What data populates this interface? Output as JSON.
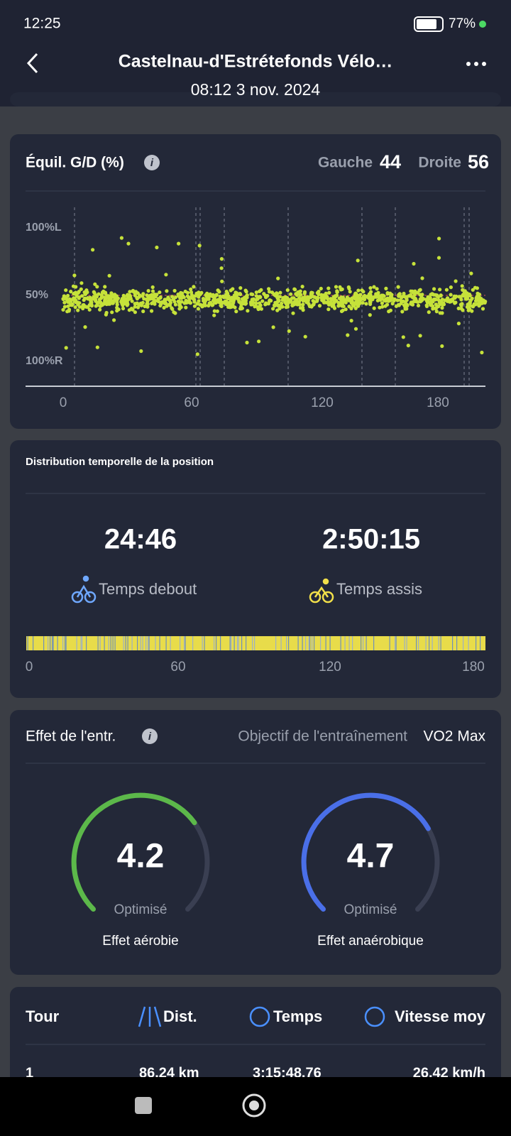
{
  "status_bar": {
    "time": "12:25",
    "battery": "77%"
  },
  "header": {
    "title": "Castelnau-d'Estrétefonds Vélo…",
    "date": "08:12 3 nov. 2024"
  },
  "balance": {
    "title": "Équil. G/D (%)",
    "left_label": "Gauche",
    "left_value": "44",
    "right_label": "Droite",
    "right_value": "56",
    "y_labels": [
      "100%L",
      "50%",
      "100%R"
    ],
    "x_labels": [
      "0",
      "60",
      "120",
      "180"
    ]
  },
  "position": {
    "title": "Distribution temporelle de la position",
    "standing_time": "24:46",
    "standing_label": "Temps debout",
    "seated_time": "2:50:15",
    "seated_label": "Temps assis",
    "x_labels": [
      "0",
      "60",
      "120",
      "180"
    ]
  },
  "training": {
    "title": "Effet de l'entr.",
    "goal_label": "Objectif de l'entraînement",
    "goal_value": "VO2 Max",
    "gauges": [
      {
        "value": "4.2",
        "status": "Optimisé",
        "label": "Effet aérobie"
      },
      {
        "value": "4.7",
        "status": "Optimisé",
        "label": "Effet anaérobique"
      }
    ]
  },
  "laps": {
    "headers": [
      "Tour",
      "Dist.",
      "Temps",
      "Vitesse moy"
    ],
    "rows": [
      [
        "1",
        "86.24 km",
        "3:15:48.76",
        "26.42 km/h"
      ]
    ]
  }
}
